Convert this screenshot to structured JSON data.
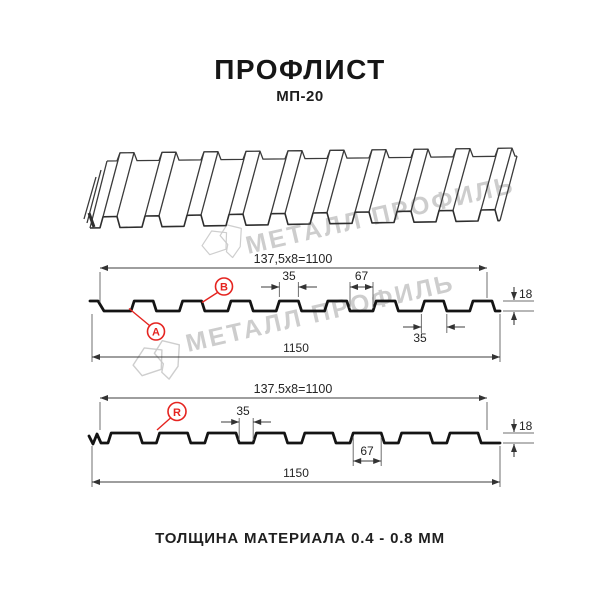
{
  "header": {
    "title": "ПРОФЛИСТ",
    "subtitle": "МП-20"
  },
  "watermarks": {
    "brand_text": "МЕТАЛЛ ПРОФИЛЬ"
  },
  "profile_a": {
    "dim_pitch": "137,5x8=1100",
    "dim_rib_top_width": "35",
    "dim_flat_width": "67",
    "dim_height": "18",
    "dim_rib_base_width": "35",
    "dim_total_width": "1150",
    "marker_a": "A",
    "marker_b": "B"
  },
  "profile_r": {
    "dim_pitch": "137.5x8=1100",
    "dim_rib_width": "35",
    "dim_flat_width": "67",
    "dim_height": "18",
    "dim_total_width": "1150",
    "marker_r": "R"
  },
  "footer": {
    "caption": "ТОЛЩИНА МАТЕРИАЛА 0.4 - 0.8 ММ"
  },
  "colors": {
    "accent_red": "#e52420",
    "line_dark": "#141414",
    "watermark_gray": "#c5c5c5"
  }
}
